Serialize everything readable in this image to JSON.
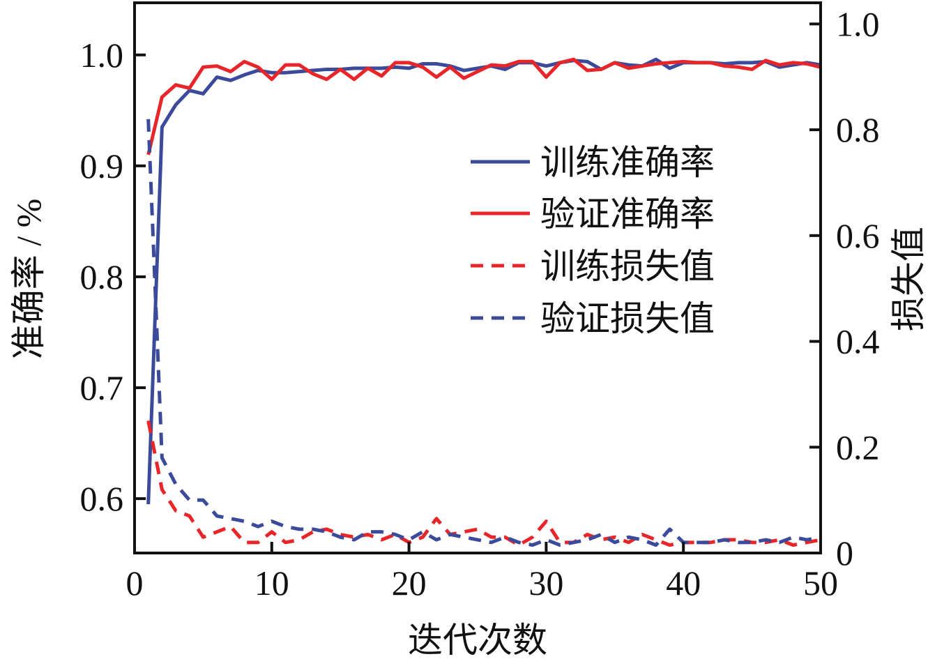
{
  "chart_data": {
    "type": "line",
    "xlabel": "迭代次数",
    "ylabel_left": "准确率 / %",
    "ylabel_right": "损失值",
    "xlim": [
      0,
      50
    ],
    "ylim_left": [
      0.551,
      1.047
    ],
    "ylim_right": [
      0,
      1.04
    ],
    "x_ticks": [
      "0",
      "10",
      "20",
      "30",
      "40",
      "50"
    ],
    "y_ticks_left": [
      "0.6",
      "0.7",
      "0.8",
      "0.9",
      "1.0"
    ],
    "y_ticks_right": [
      "0",
      "0.2",
      "0.4",
      "0.6",
      "0.8",
      "1.0"
    ],
    "legend_position": "center-right",
    "x": [
      1,
      2,
      3,
      4,
      5,
      6,
      7,
      8,
      9,
      10,
      11,
      12,
      13,
      14,
      15,
      16,
      17,
      18,
      19,
      20,
      21,
      22,
      23,
      24,
      25,
      26,
      27,
      28,
      29,
      30,
      31,
      32,
      33,
      34,
      35,
      36,
      37,
      38,
      39,
      40,
      41,
      42,
      43,
      44,
      45,
      46,
      47,
      48,
      49,
      50
    ],
    "series": [
      {
        "name": "训练准确率",
        "axis": "left",
        "color": "#3b4a9a",
        "dash": false,
        "values": [
          0.595,
          0.935,
          0.955,
          0.968,
          0.965,
          0.98,
          0.977,
          0.982,
          0.986,
          0.984,
          0.984,
          0.985,
          0.986,
          0.987,
          0.987,
          0.988,
          0.988,
          0.988,
          0.989,
          0.988,
          0.992,
          0.992,
          0.99,
          0.986,
          0.988,
          0.99,
          0.987,
          0.993,
          0.993,
          0.99,
          0.993,
          0.995,
          0.994,
          0.987,
          0.993,
          0.991,
          0.99,
          0.996,
          0.988,
          0.993,
          0.993,
          0.993,
          0.992,
          0.993,
          0.993,
          0.994,
          0.989,
          0.991,
          0.993,
          0.991
        ]
      },
      {
        "name": "验证准确率",
        "axis": "left",
        "color": "#e8262a",
        "dash": false,
        "values": [
          0.91,
          0.962,
          0.973,
          0.97,
          0.989,
          0.99,
          0.985,
          0.994,
          0.989,
          0.978,
          0.991,
          0.991,
          0.983,
          0.978,
          0.987,
          0.978,
          0.988,
          0.981,
          0.993,
          0.993,
          0.989,
          0.98,
          0.989,
          0.979,
          0.985,
          0.991,
          0.99,
          0.994,
          0.994,
          0.98,
          0.993,
          0.996,
          0.986,
          0.987,
          0.993,
          0.988,
          0.99,
          0.992,
          0.993,
          0.994,
          0.993,
          0.993,
          0.99,
          0.989,
          0.987,
          0.995,
          0.991,
          0.993,
          0.992,
          0.989
        ]
      },
      {
        "name": "训练损失值",
        "axis": "right",
        "color": "#e8262a",
        "dash": true,
        "values": [
          0.25,
          0.12,
          0.08,
          0.07,
          0.03,
          0.04,
          0.05,
          0.02,
          0.02,
          0.04,
          0.02,
          0.025,
          0.04,
          0.045,
          0.035,
          0.03,
          0.035,
          0.025,
          0.035,
          0.02,
          0.03,
          0.065,
          0.035,
          0.04,
          0.045,
          0.03,
          0.03,
          0.015,
          0.03,
          0.06,
          0.02,
          0.02,
          0.035,
          0.025,
          0.03,
          0.02,
          0.035,
          0.025,
          0.015,
          0.02,
          0.02,
          0.02,
          0.025,
          0.025,
          0.02,
          0.02,
          0.025,
          0.015,
          0.02,
          0.025
        ]
      },
      {
        "name": "验证损失值",
        "axis": "right",
        "color": "#3b4a9a",
        "dash": true,
        "values": [
          0.82,
          0.18,
          0.13,
          0.1,
          0.1,
          0.07,
          0.065,
          0.06,
          0.05,
          0.06,
          0.05,
          0.045,
          0.045,
          0.04,
          0.03,
          0.025,
          0.04,
          0.04,
          0.035,
          0.025,
          0.04,
          0.025,
          0.035,
          0.03,
          0.025,
          0.02,
          0.03,
          0.02,
          0.015,
          0.025,
          0.015,
          0.02,
          0.025,
          0.035,
          0.02,
          0.03,
          0.025,
          0.015,
          0.045,
          0.02,
          0.02,
          0.02,
          0.025,
          0.02,
          0.02,
          0.025,
          0.02,
          0.03,
          0.025,
          0.03
        ]
      }
    ]
  }
}
